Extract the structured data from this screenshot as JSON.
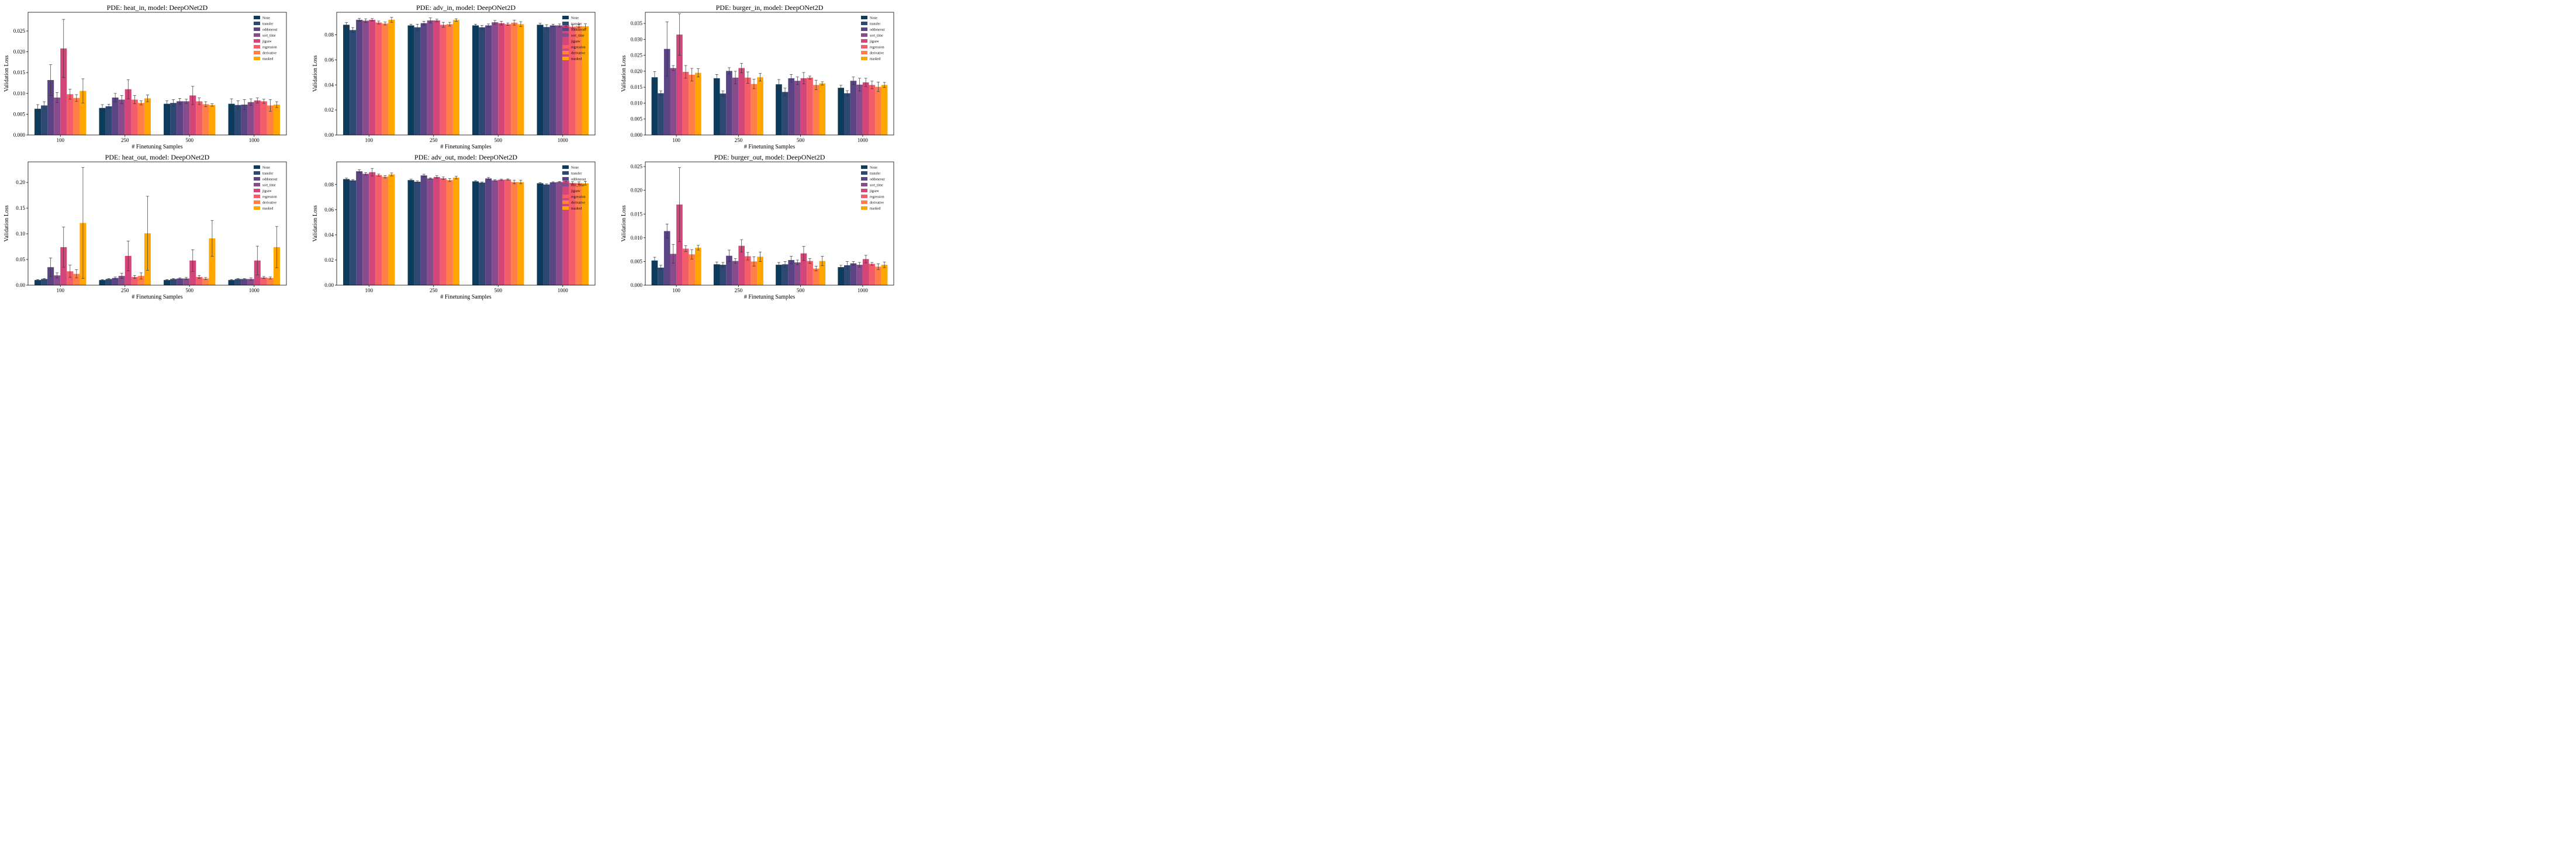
{
  "chart_data": [
    {
      "type": "bar",
      "title": "PDE: heat_in, model: DeepONet2D",
      "xlabel": "# Finetuning Samples",
      "ylabel": "Validation Loss",
      "categories": [
        "100",
        "250",
        "500",
        "1000"
      ],
      "ylim": [
        0,
        0.0295
      ],
      "yticks": [
        0.0,
        0.005,
        0.01,
        0.015,
        0.02,
        0.025
      ],
      "ytick_labels": [
        "0.000",
        "0.005",
        "0.010",
        "0.015",
        "0.020",
        "0.025"
      ],
      "legend": "top-right",
      "series": [
        {
          "name": "None",
          "values": [
            0.0063,
            0.0065,
            0.0075,
            0.0075
          ],
          "errors": [
            0.001,
            0.0008,
            0.0007,
            0.0012
          ]
        },
        {
          "name": "transfer",
          "values": [
            0.0071,
            0.0069,
            0.0077,
            0.0072
          ],
          "errors": [
            0.0009,
            0.0005,
            0.0008,
            0.001
          ]
        },
        {
          "name": "oddoneout",
          "values": [
            0.0132,
            0.009,
            0.0081,
            0.0073
          ],
          "errors": [
            0.0037,
            0.001,
            0.0007,
            0.0012
          ]
        },
        {
          "name": "sort_time",
          "values": [
            0.009,
            0.0085,
            0.0081,
            0.0079
          ],
          "errors": [
            0.0012,
            0.001,
            0.0005,
            0.0008
          ]
        },
        {
          "name": "jigsaw",
          "values": [
            0.0208,
            0.011,
            0.0095,
            0.0083
          ],
          "errors": [
            0.007,
            0.0023,
            0.0022,
            0.0006
          ]
        },
        {
          "name": "regression",
          "values": [
            0.0098,
            0.0085,
            0.0081,
            0.0081
          ],
          "errors": [
            0.0012,
            0.001,
            0.0008,
            0.0005
          ]
        },
        {
          "name": "derivative",
          "values": [
            0.0089,
            0.0077,
            0.0074,
            0.0071
          ],
          "errors": [
            0.0008,
            0.0005,
            0.0006,
            0.0014
          ]
        },
        {
          "name": "masked",
          "values": [
            0.0106,
            0.0088,
            0.0072,
            0.0073
          ],
          "errors": [
            0.0029,
            0.0008,
            0.0003,
            0.0007
          ]
        }
      ]
    },
    {
      "type": "bar",
      "title": "PDE: adv_in, model: DeepONet2D",
      "xlabel": "# Finetuning Samples",
      "ylabel": "Validation Loss",
      "categories": [
        "100",
        "250",
        "500",
        "1000"
      ],
      "ylim": [
        0,
        0.098
      ],
      "yticks": [
        0.0,
        0.02,
        0.04,
        0.06,
        0.08
      ],
      "ytick_labels": [
        "0.00",
        "0.02",
        "0.04",
        "0.06",
        "0.08"
      ],
      "legend": "top-right",
      "series": [
        {
          "name": "None",
          "values": [
            0.088,
            0.0875,
            0.0875,
            0.088
          ],
          "errors": [
            0.0018,
            0.001,
            0.001,
            0.0012
          ]
        },
        {
          "name": "transfer",
          "values": [
            0.0838,
            0.086,
            0.086,
            0.0862
          ],
          "errors": [
            0.002,
            0.0025,
            0.0015,
            0.0018
          ]
        },
        {
          "name": "oddoneout",
          "values": [
            0.092,
            0.0893,
            0.0875,
            0.0875
          ],
          "errors": [
            0.0012,
            0.0015,
            0.0012,
            0.001
          ]
        },
        {
          "name": "sort_time",
          "values": [
            0.0913,
            0.0915,
            0.09,
            0.0875
          ],
          "errors": [
            0.0015,
            0.002,
            0.0015,
            0.0012
          ]
        },
        {
          "name": "jigsaw",
          "values": [
            0.092,
            0.0915,
            0.0893,
            0.088
          ],
          "errors": [
            0.001,
            0.001,
            0.0015,
            0.0015
          ]
        },
        {
          "name": "regression",
          "values": [
            0.0898,
            0.088,
            0.0885,
            0.0865
          ],
          "errors": [
            0.0012,
            0.002,
            0.001,
            0.0015
          ]
        },
        {
          "name": "derivative",
          "values": [
            0.089,
            0.0885,
            0.0897,
            0.087
          ],
          "errors": [
            0.0012,
            0.0015,
            0.002,
            0.0015
          ]
        },
        {
          "name": "masked",
          "values": [
            0.092,
            0.0918,
            0.0885,
            0.0868
          ],
          "errors": [
            0.002,
            0.001,
            0.002,
            0.002
          ]
        }
      ]
    },
    {
      "type": "bar",
      "title": "PDE: burger_in, model: DeepONet2D",
      "xlabel": "# Finetuning Samples",
      "ylabel": "Validation Loss",
      "categories": [
        "100",
        "250",
        "500",
        "1000"
      ],
      "ylim": [
        0,
        0.0385
      ],
      "yticks": [
        0.0,
        0.005,
        0.01,
        0.015,
        0.02,
        0.025,
        0.03,
        0.035
      ],
      "ytick_labels": [
        "0.000",
        "0.005",
        "0.010",
        "0.015",
        "0.020",
        "0.025",
        "0.030",
        "0.035"
      ],
      "legend": "top-right",
      "series": [
        {
          "name": "None",
          "values": [
            0.0181,
            0.0178,
            0.0159,
            0.0148
          ],
          "errors": [
            0.0018,
            0.0012,
            0.0015,
            0.0008
          ]
        },
        {
          "name": "transfer",
          "values": [
            0.0131,
            0.013,
            0.0135,
            0.0131
          ],
          "errors": [
            0.0007,
            0.0008,
            0.0012,
            0.0008
          ]
        },
        {
          "name": "oddoneout",
          "values": [
            0.027,
            0.0201,
            0.0178,
            0.017
          ],
          "errors": [
            0.0085,
            0.001,
            0.0012,
            0.0012
          ]
        },
        {
          "name": "sort_time",
          "values": [
            0.021,
            0.018,
            0.017,
            0.0158
          ],
          "errors": [
            0.0008,
            0.002,
            0.0012,
            0.002
          ]
        },
        {
          "name": "jigsaw",
          "values": [
            0.0315,
            0.021,
            0.0178,
            0.0165
          ],
          "errors": [
            0.0065,
            0.0015,
            0.0018,
            0.0013
          ]
        },
        {
          "name": "regression",
          "values": [
            0.0198,
            0.018,
            0.018,
            0.0157
          ],
          "errors": [
            0.002,
            0.0018,
            0.0005,
            0.0012
          ]
        },
        {
          "name": "derivative",
          "values": [
            0.0189,
            0.016,
            0.0157,
            0.0151
          ],
          "errors": [
            0.002,
            0.0015,
            0.0015,
            0.0015
          ]
        },
        {
          "name": "masked",
          "values": [
            0.0195,
            0.0181,
            0.0162,
            0.0157
          ],
          "errors": [
            0.0013,
            0.0012,
            0.0005,
            0.0008
          ]
        }
      ]
    },
    {
      "type": "bar",
      "title": "PDE: heat_out, model: DeepONet2D",
      "xlabel": "# Finetuning Samples",
      "ylabel": "Validation Loss",
      "categories": [
        "100",
        "250",
        "500",
        "1000"
      ],
      "ylim": [
        0,
        0.24
      ],
      "yticks": [
        0.0,
        0.05,
        0.1,
        0.15,
        0.2
      ],
      "ytick_labels": [
        "0.00",
        "0.05",
        "0.10",
        "0.15",
        "0.20"
      ],
      "legend": "top-right",
      "series": [
        {
          "name": "None",
          "values": [
            0.01,
            0.01,
            0.01,
            0.01
          ],
          "errors": [
            0.001,
            0.001,
            0.001,
            0.001
          ]
        },
        {
          "name": "transfer",
          "values": [
            0.012,
            0.012,
            0.012,
            0.012
          ],
          "errors": [
            0.001,
            0.001,
            0.001,
            0.001
          ]
        },
        {
          "name": "oddoneout",
          "values": [
            0.035,
            0.014,
            0.013,
            0.012
          ],
          "errors": [
            0.018,
            0.002,
            0.001,
            0.001
          ]
        },
        {
          "name": "sort_time",
          "values": [
            0.019,
            0.018,
            0.013,
            0.012
          ],
          "errors": [
            0.005,
            0.005,
            0.002,
            0.002
          ]
        },
        {
          "name": "jigsaw",
          "values": [
            0.074,
            0.057,
            0.048,
            0.048
          ],
          "errors": [
            0.039,
            0.029,
            0.021,
            0.028
          ]
        },
        {
          "name": "regression",
          "values": [
            0.027,
            0.016,
            0.016,
            0.015
          ],
          "errors": [
            0.012,
            0.003,
            0.003,
            0.002
          ]
        },
        {
          "name": "derivative",
          "values": [
            0.022,
            0.018,
            0.013,
            0.014
          ],
          "errors": [
            0.008,
            0.006,
            0.002,
            0.002
          ]
        },
        {
          "name": "masked",
          "values": [
            0.121,
            0.101,
            0.091,
            0.074
          ],
          "errors": [
            0.108,
            0.072,
            0.035,
            0.04
          ]
        }
      ]
    },
    {
      "type": "bar",
      "title": "PDE: adv_out, model: DeepONet2D",
      "xlabel": "# Finetuning Samples",
      "ylabel": "Validation Loss",
      "categories": [
        "100",
        "250",
        "500",
        "1000"
      ],
      "ylim": [
        0,
        0.098
      ],
      "yticks": [
        0.0,
        0.02,
        0.04,
        0.06,
        0.08
      ],
      "ytick_labels": [
        "0.00",
        "0.02",
        "0.04",
        "0.06",
        "0.08"
      ],
      "legend": "top-right",
      "series": [
        {
          "name": "None",
          "values": [
            0.0843,
            0.0835,
            0.0825,
            0.081
          ],
          "errors": [
            0.0008,
            0.0008,
            0.0006,
            0.0005
          ]
        },
        {
          "name": "transfer",
          "values": [
            0.0833,
            0.0822,
            0.0815,
            0.08
          ],
          "errors": [
            0.0005,
            0.0007,
            0.0005,
            0.0005
          ]
        },
        {
          "name": "oddoneout",
          "values": [
            0.0905,
            0.0872,
            0.0848,
            0.0817
          ],
          "errors": [
            0.0012,
            0.001,
            0.0008,
            0.0005
          ]
        },
        {
          "name": "sort_time",
          "values": [
            0.0885,
            0.0848,
            0.0833,
            0.082
          ],
          "errors": [
            0.001,
            0.0005,
            0.0005,
            0.0005
          ]
        },
        {
          "name": "jigsaw",
          "values": [
            0.0898,
            0.086,
            0.0838,
            0.083
          ],
          "errors": [
            0.003,
            0.001,
            0.0005,
            0.0008
          ]
        },
        {
          "name": "regression",
          "values": [
            0.0875,
            0.085,
            0.084,
            0.0813
          ],
          "errors": [
            0.0008,
            0.001,
            0.0005,
            0.001
          ]
        },
        {
          "name": "derivative",
          "values": [
            0.0862,
            0.0835,
            0.082,
            0.0812
          ],
          "errors": [
            0.001,
            0.0012,
            0.0015,
            0.001
          ]
        },
        {
          "name": "masked",
          "values": [
            0.088,
            0.0855,
            0.082,
            0.081
          ],
          "errors": [
            0.0012,
            0.001,
            0.0015,
            0.0015
          ]
        }
      ]
    },
    {
      "type": "bar",
      "title": "PDE: burger_out, model: DeepONet2D",
      "xlabel": "# Finetuning Samples",
      "ylabel": "Validation Loss",
      "categories": [
        "100",
        "250",
        "500",
        "1000"
      ],
      "ylim": [
        0,
        0.026
      ],
      "yticks": [
        0.0,
        0.005,
        0.01,
        0.015,
        0.02,
        0.025
      ],
      "ytick_labels": [
        "0.000",
        "0.005",
        "0.010",
        "0.015",
        "0.020",
        "0.025"
      ],
      "legend": "top-right",
      "series": [
        {
          "name": "None",
          "values": [
            0.0052,
            0.0044,
            0.0043,
            0.0038
          ],
          "errors": [
            0.0007,
            0.0005,
            0.0005,
            0.0004
          ]
        },
        {
          "name": "transfer",
          "values": [
            0.0037,
            0.0043,
            0.0044,
            0.0042
          ],
          "errors": [
            0.0005,
            0.0005,
            0.0006,
            0.0008
          ]
        },
        {
          "name": "oddoneout",
          "values": [
            0.0114,
            0.0062,
            0.0053,
            0.0046
          ],
          "errors": [
            0.0015,
            0.0012,
            0.0008,
            0.0004
          ]
        },
        {
          "name": "sort_time",
          "values": [
            0.0066,
            0.0051,
            0.0048,
            0.0043
          ],
          "errors": [
            0.002,
            0.0005,
            0.0005,
            0.0005
          ]
        },
        {
          "name": "jigsaw",
          "values": [
            0.017,
            0.0083,
            0.0067,
            0.0055
          ],
          "errors": [
            0.0078,
            0.0013,
            0.0015,
            0.0008
          ]
        },
        {
          "name": "regression",
          "values": [
            0.0077,
            0.0061,
            0.0051,
            0.0045
          ],
          "errors": [
            0.0006,
            0.0008,
            0.0005,
            0.0003
          ]
        },
        {
          "name": "derivative",
          "values": [
            0.0065,
            0.005,
            0.0035,
            0.0039
          ],
          "errors": [
            0.001,
            0.001,
            0.0005,
            0.0006
          ]
        },
        {
          "name": "masked",
          "values": [
            0.0079,
            0.006,
            0.0051,
            0.0043
          ],
          "errors": [
            0.0005,
            0.001,
            0.001,
            0.0006
          ]
        }
      ]
    }
  ],
  "colors": [
    "#0d3b5c",
    "#2e4874",
    "#5b4483",
    "#884b8c",
    "#d2467a",
    "#f35e6a",
    "#ff7f47",
    "#ffa600"
  ]
}
